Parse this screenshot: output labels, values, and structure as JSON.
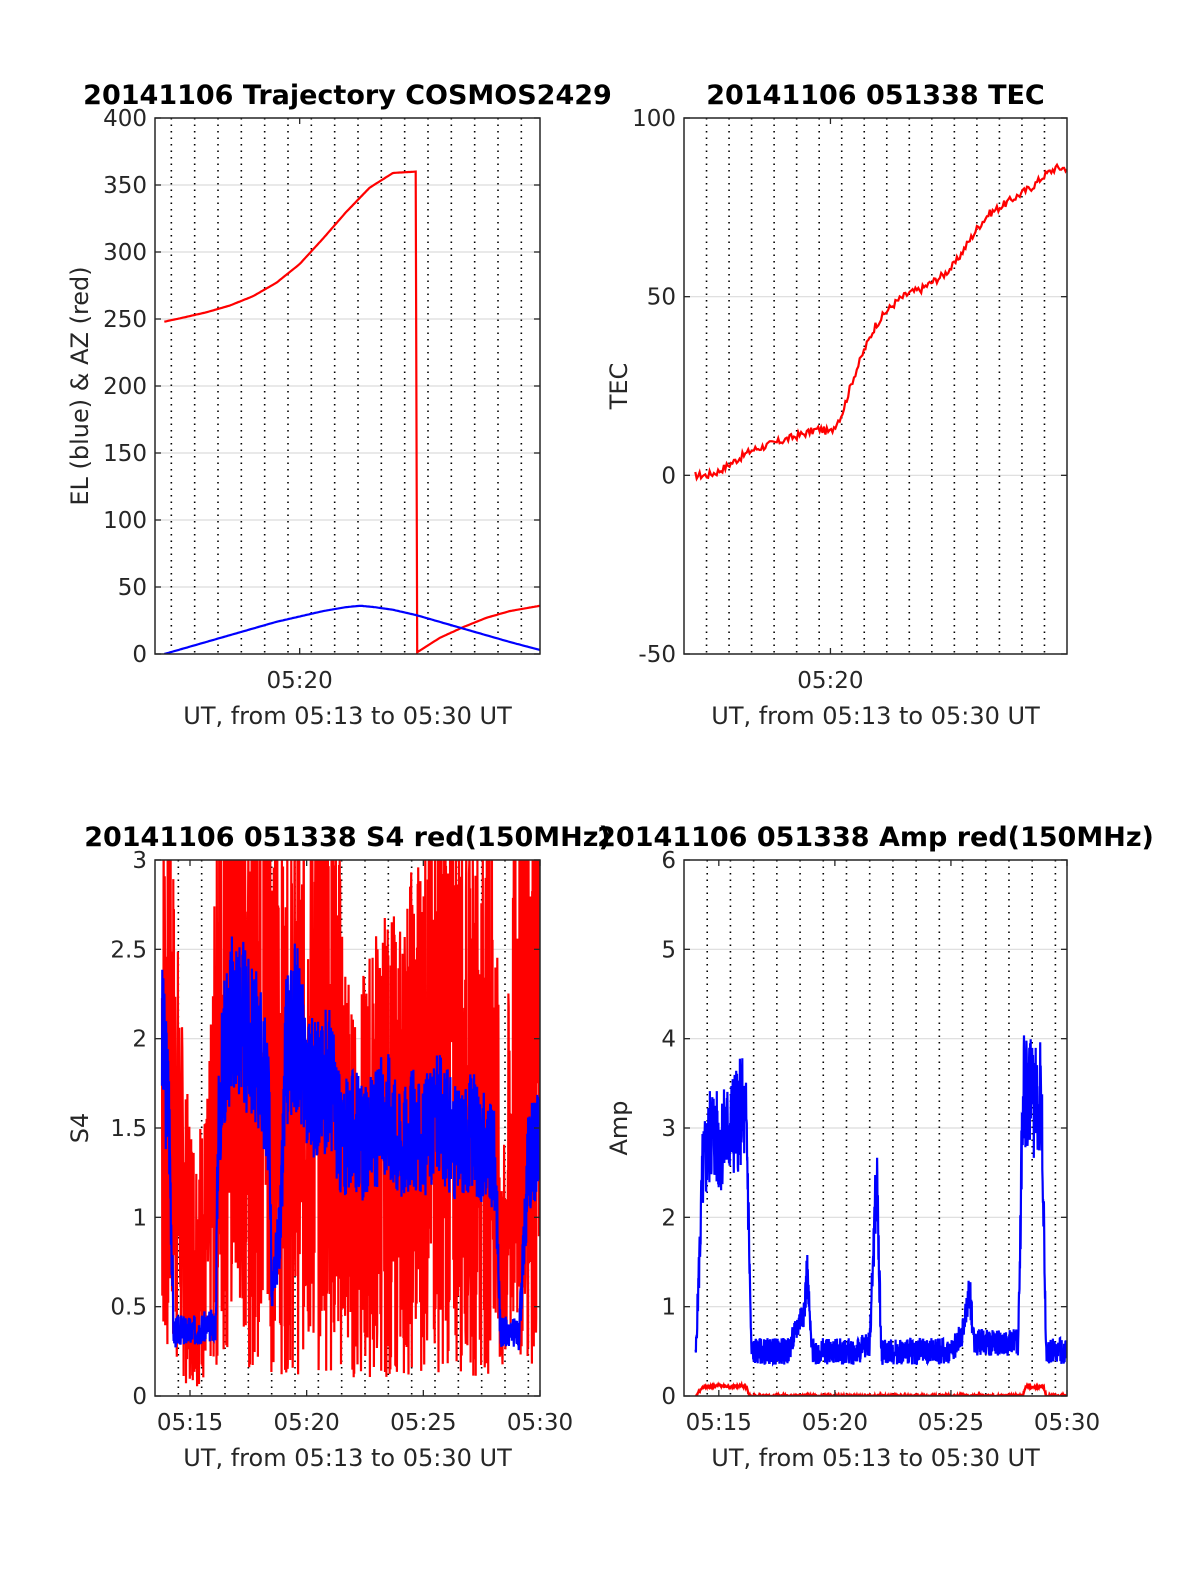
{
  "chart_data": [
    {
      "type": "line",
      "title": "20141106 Trajectory COSMOS2429",
      "xlabel": "UT, from 05:13 to 05:30 UT",
      "ylabel": "EL (blue) & AZ (red)",
      "xlim_min": [
        13.8,
        30.3
      ],
      "ylim": [
        0,
        400
      ],
      "yticks": [
        0,
        50,
        100,
        150,
        200,
        250,
        300,
        350,
        400
      ],
      "xticks_min": [
        20
      ],
      "xtick_labels": [
        "05:20"
      ],
      "vgrid_min": [
        14.5,
        15.5,
        16.5,
        17.5,
        18.5,
        19.5,
        20.5,
        21.5,
        22.5,
        23.5,
        24.5,
        25.5,
        26.5,
        27.5,
        28.5,
        29.5
      ],
      "grid": true,
      "series": [
        {
          "color": "#ff0000",
          "x": [
            14.2,
            15,
            16,
            17,
            18,
            19,
            20,
            21,
            22,
            23,
            24,
            24.99,
            25.01,
            26,
            27,
            28,
            29,
            30.3
          ],
          "y": [
            248,
            251,
            255,
            260,
            267,
            277,
            291,
            310,
            330,
            348,
            359,
            360,
            1,
            12,
            20,
            27,
            32,
            36
          ]
        },
        {
          "color": "#0000ff",
          "x": [
            14.2,
            15,
            16,
            17,
            18,
            19,
            20,
            21,
            22,
            22.6,
            23.2,
            24,
            25,
            26,
            27,
            28,
            29,
            30.3
          ],
          "y": [
            0,
            4,
            9,
            14,
            19,
            24,
            28,
            32,
            35,
            36,
            35,
            33,
            29,
            24,
            19,
            14,
            9,
            3
          ]
        }
      ]
    },
    {
      "type": "line",
      "title": "20141106 051338 TEC",
      "xlabel": "UT, from 05:13 to 05:30 UT",
      "ylabel": "TEC",
      "xlim_min": [
        13.5,
        30.5
      ],
      "ylim": [
        -50,
        100
      ],
      "yticks": [
        -50,
        0,
        50,
        100
      ],
      "xticks_min": [
        20
      ],
      "xtick_labels": [
        "05:20"
      ],
      "vgrid_min": [
        14.5,
        15.5,
        16.5,
        17.5,
        18.5,
        19.5,
        20.5,
        21.5,
        22.5,
        23.5,
        24.5,
        25.5,
        26.5,
        27.5,
        28.5,
        29.5
      ],
      "grid": true,
      "series": [
        {
          "color": "#ff0000",
          "x": [
            14,
            14.5,
            15,
            15.5,
            16,
            16.5,
            17,
            17.5,
            18,
            18.5,
            19,
            19.5,
            20,
            20.5,
            21,
            21.5,
            22,
            22.5,
            23,
            23.5,
            24,
            24.5,
            25,
            25.5,
            26,
            26.5,
            27,
            27.5,
            28,
            28.5,
            29,
            29.5,
            30,
            30.5
          ],
          "y": [
            0,
            0,
            1,
            3,
            5,
            7,
            8,
            9,
            10,
            11,
            12,
            13,
            12,
            17,
            27,
            35,
            42,
            46,
            49,
            51,
            52,
            54,
            56,
            59,
            64,
            69,
            73,
            75,
            77,
            79,
            81,
            84,
            86,
            86
          ]
        }
      ]
    },
    {
      "type": "line",
      "title": "20141106 051338 S4 red(150MHz)",
      "xlabel": "UT, from 05:13 to 05:30 UT",
      "ylabel": "S4",
      "xlim_min": [
        13.5,
        30
      ],
      "ylim": [
        0,
        3
      ],
      "yticks": [
        0,
        0.5,
        1,
        1.5,
        2,
        2.5,
        3
      ],
      "xticks_min": [
        15,
        20,
        25,
        30
      ],
      "xtick_labels": [
        "05:15",
        "05:20",
        "05:25",
        "05:30"
      ],
      "vgrid_min": [
        14.5,
        15.5,
        16.5,
        17.5,
        18.5,
        19.5,
        20.5,
        21.5,
        22.5,
        23.5,
        24.5,
        25.5,
        26.5,
        27.5,
        28.5,
        29.5
      ],
      "grid": true,
      "series": [
        {
          "color": "#ff0000",
          "style": "noise",
          "seed": 7,
          "x": [
            13.8,
            14.3,
            14.8,
            15.3,
            15.8,
            16.4,
            17,
            18,
            19,
            20,
            21,
            22,
            23,
            24,
            25,
            26,
            27,
            28,
            28.4,
            29,
            30
          ],
          "y": [
            2.0,
            1.6,
            0.9,
            0.8,
            0.9,
            2.2,
            2.4,
            2.4,
            1.6,
            1.8,
            2.0,
            1.1,
            1.4,
            1.4,
            1.7,
            1.9,
            1.6,
            1.8,
            0.6,
            2.0,
            2.4
          ],
          "amp": 1.4
        },
        {
          "color": "#0000ff",
          "style": "noise",
          "seed": 3,
          "x": [
            13.8,
            14.1,
            14.3,
            14.6,
            15.0,
            15.5,
            16.1,
            16.2,
            16.5,
            17,
            17.5,
            18,
            18.4,
            18.5,
            18.9,
            19.1,
            19.5,
            20,
            20.5,
            21,
            21.5,
            22,
            22.5,
            23,
            23.5,
            24,
            24.5,
            25,
            25.5,
            26,
            26.5,
            27,
            27.5,
            28.1,
            28.3,
            28.6,
            29.1,
            29.5,
            30
          ],
          "y": [
            2.0,
            1.6,
            0.35,
            0.37,
            0.36,
            0.38,
            0.4,
            1.5,
            2.0,
            2.2,
            2.0,
            1.9,
            1.6,
            0.55,
            1.0,
            1.9,
            2.1,
            1.8,
            1.7,
            1.8,
            1.4,
            1.5,
            1.4,
            1.5,
            1.6,
            1.4,
            1.5,
            1.4,
            1.6,
            1.5,
            1.4,
            1.5,
            1.4,
            1.3,
            0.35,
            0.36,
            0.34,
            1.3,
            1.4
          ],
          "amp": 0.35
        }
      ]
    },
    {
      "type": "line",
      "title": "20141106 051338 Amp red(150MHz)",
      "xlabel": "UT, from 05:13 to 05:30 UT",
      "ylabel": "Amp",
      "xlim_min": [
        13.5,
        30
      ],
      "ylim": [
        0,
        6
      ],
      "yticks": [
        0,
        1,
        2,
        3,
        4,
        5,
        6
      ],
      "xticks_min": [
        15,
        20,
        25,
        30
      ],
      "xtick_labels": [
        "05:15",
        "05:20",
        "05:25",
        "05:30"
      ],
      "vgrid_min": [
        14.5,
        15.5,
        16.5,
        17.5,
        18.5,
        19.5,
        20.5,
        21.5,
        22.5,
        23.5,
        24.5,
        25.5,
        26.5,
        27.5,
        28.5,
        29.5
      ],
      "grid": true,
      "series": [
        {
          "color": "#ff0000",
          "style": "noise",
          "seed": 11,
          "x": [
            14.0,
            14.3,
            14.6,
            15.0,
            15.5,
            16.0,
            16.2,
            16.3,
            28.1,
            28.2,
            29.0,
            29.1,
            29.2,
            30
          ],
          "y": [
            0,
            0.1,
            0.1,
            0.12,
            0.1,
            0.12,
            0.1,
            0,
            0,
            0.1,
            0.1,
            0,
            0,
            0
          ],
          "amp": 0.05
        },
        {
          "color": "#0000ff",
          "style": "noise",
          "seed": 5,
          "x": [
            14.0,
            14.3,
            14.7,
            15.0,
            15.5,
            16.0,
            16.2,
            16.4,
            17,
            18,
            18.7,
            18.8,
            19,
            20,
            21,
            21.5,
            21.8,
            22,
            23,
            24,
            25,
            25.5,
            25.8,
            26,
            27,
            27.9,
            28.1,
            28.5,
            28.9,
            29.1,
            29.4,
            30
          ],
          "y": [
            0.4,
            2.5,
            3.0,
            2.8,
            3.0,
            3.2,
            3.0,
            0.5,
            0.5,
            0.5,
            1.0,
            1.4,
            0.5,
            0.5,
            0.5,
            0.6,
            2.5,
            0.5,
            0.5,
            0.5,
            0.5,
            0.7,
            1.2,
            0.6,
            0.6,
            0.6,
            3.5,
            3.3,
            3.4,
            0.5,
            0.5,
            0.5
          ],
          "amp": 0.6
        }
      ]
    }
  ]
}
